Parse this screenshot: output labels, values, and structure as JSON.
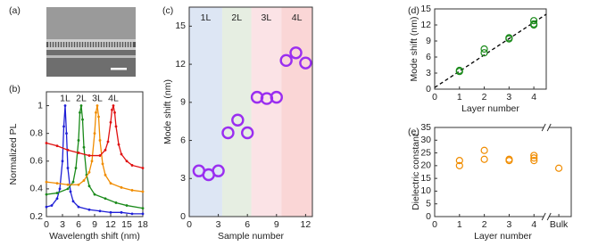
{
  "chart_data": [
    {
      "type": "image",
      "panel_label": "(a)"
    },
    {
      "type": "line",
      "panel_label": "(b)",
      "xlabel": "Wavelength shift (nm)",
      "ylabel": "Normalized PL",
      "xlim": [
        0,
        18
      ],
      "ylim": [
        0.2,
        1.1
      ],
      "xticks": [
        0,
        3,
        6,
        9,
        12,
        15,
        18
      ],
      "yticks": [
        0.2,
        0.4,
        0.6,
        0.8,
        1
      ],
      "series": [
        {
          "name": "1L",
          "color": "#1f1fd6",
          "x": [
            0,
            1,
            2,
            2.5,
            3,
            3.25,
            3.5,
            3.75,
            4,
            4.5,
            5,
            6,
            8,
            10,
            12,
            14,
            16,
            18
          ],
          "values": [
            0.27,
            0.28,
            0.33,
            0.4,
            0.6,
            0.85,
            1.0,
            0.8,
            0.55,
            0.38,
            0.31,
            0.27,
            0.25,
            0.24,
            0.23,
            0.23,
            0.22,
            0.22
          ]
        },
        {
          "name": "2L",
          "color": "#1a8a1a",
          "x": [
            0,
            2,
            4,
            5,
            5.5,
            6,
            6.25,
            6.5,
            6.75,
            7,
            7.5,
            8,
            9,
            11,
            13,
            15,
            18
          ],
          "values": [
            0.36,
            0.37,
            0.4,
            0.45,
            0.55,
            0.75,
            0.95,
            1.0,
            0.9,
            0.7,
            0.5,
            0.42,
            0.36,
            0.33,
            0.3,
            0.28,
            0.26
          ]
        },
        {
          "name": "3L",
          "color": "#f08c00",
          "x": [
            0,
            2,
            4,
            6,
            7,
            8,
            8.5,
            9,
            9.25,
            9.5,
            9.75,
            10,
            10.5,
            11,
            12,
            14,
            16,
            18
          ],
          "values": [
            0.45,
            0.44,
            0.43,
            0.43,
            0.46,
            0.52,
            0.6,
            0.8,
            0.95,
            1.0,
            0.92,
            0.75,
            0.58,
            0.5,
            0.44,
            0.41,
            0.39,
            0.38
          ]
        },
        {
          "name": "4L",
          "color": "#e01010",
          "x": [
            0,
            2,
            4,
            6,
            8,
            10,
            11,
            11.5,
            12,
            12.25,
            12.5,
            12.75,
            13,
            13.5,
            14,
            15,
            16,
            18
          ],
          "values": [
            0.73,
            0.71,
            0.68,
            0.66,
            0.64,
            0.64,
            0.68,
            0.74,
            0.88,
            0.97,
            1.0,
            0.95,
            0.85,
            0.72,
            0.65,
            0.6,
            0.57,
            0.55
          ]
        }
      ]
    },
    {
      "type": "scatter",
      "panel_label": "(c)",
      "xlabel": "Sample number",
      "ylabel": "Mode shift (nm)",
      "xlim": [
        0,
        12.7
      ],
      "ylim": [
        0,
        16.5
      ],
      "xticks": [
        0,
        3,
        6,
        9,
        12
      ],
      "yticks": [
        0,
        3,
        6,
        9,
        12,
        15
      ],
      "regions": [
        {
          "label": "1L",
          "x0": 0,
          "x1": 3.4,
          "color": "#dde6f4"
        },
        {
          "label": "2L",
          "x0": 3.4,
          "x1": 6.4,
          "color": "#e6eee2"
        },
        {
          "label": "3L",
          "x0": 6.4,
          "x1": 9.5,
          "color": "#fbe3e6"
        },
        {
          "label": "4L",
          "x0": 9.5,
          "x1": 12.7,
          "color": "#fad6d6"
        }
      ],
      "series": [
        {
          "color": "#9a2ef0",
          "x": [
            1,
            2,
            3,
            4,
            5,
            6,
            7,
            8,
            9,
            10,
            11,
            12
          ],
          "values": [
            3.6,
            3.3,
            3.6,
            6.6,
            7.6,
            6.6,
            9.4,
            9.3,
            9.4,
            12.3,
            12.9,
            12.1
          ]
        }
      ]
    },
    {
      "type": "scatter",
      "panel_label": "(d)",
      "xlabel": "Layer number",
      "ylabel": "Mode shift (nm)",
      "xlim": [
        0,
        4.5
      ],
      "ylim": [
        0,
        15
      ],
      "xticks": [
        0,
        1,
        2,
        3,
        4
      ],
      "yticks": [
        0,
        3,
        6,
        9,
        12,
        15
      ],
      "series": [
        {
          "color": "#000000",
          "dash": true,
          "x": [
            0,
            4.5
          ],
          "values": [
            0.3,
            14
          ]
        },
        {
          "color": "#1a8a1a",
          "x": [
            1,
            1,
            2,
            2,
            3,
            3,
            4,
            4,
            4
          ],
          "values": [
            3.3,
            3.5,
            6.8,
            7.5,
            9.4,
            9.6,
            12.2,
            12.8,
            12.0
          ]
        }
      ]
    },
    {
      "type": "scatter",
      "panel_label": "(e)",
      "xlabel": "Layer number",
      "ylabel": "Dielectric constant",
      "xlim": [
        0,
        5.5
      ],
      "ylim": [
        0,
        35
      ],
      "axis_break": 4.5,
      "xticks": [
        0,
        1,
        2,
        3,
        4,
        {
          "value": 5,
          "label": "Bulk"
        }
      ],
      "yticks": [
        0,
        5,
        10,
        15,
        20,
        25,
        30,
        35
      ],
      "series": [
        {
          "color": "#f08c00",
          "x": [
            1,
            1,
            2,
            2,
            3,
            3,
            4,
            4,
            4,
            5
          ],
          "values": [
            20,
            22,
            22.5,
            26,
            22,
            22.5,
            22,
            23,
            24,
            19
          ]
        }
      ]
    }
  ]
}
